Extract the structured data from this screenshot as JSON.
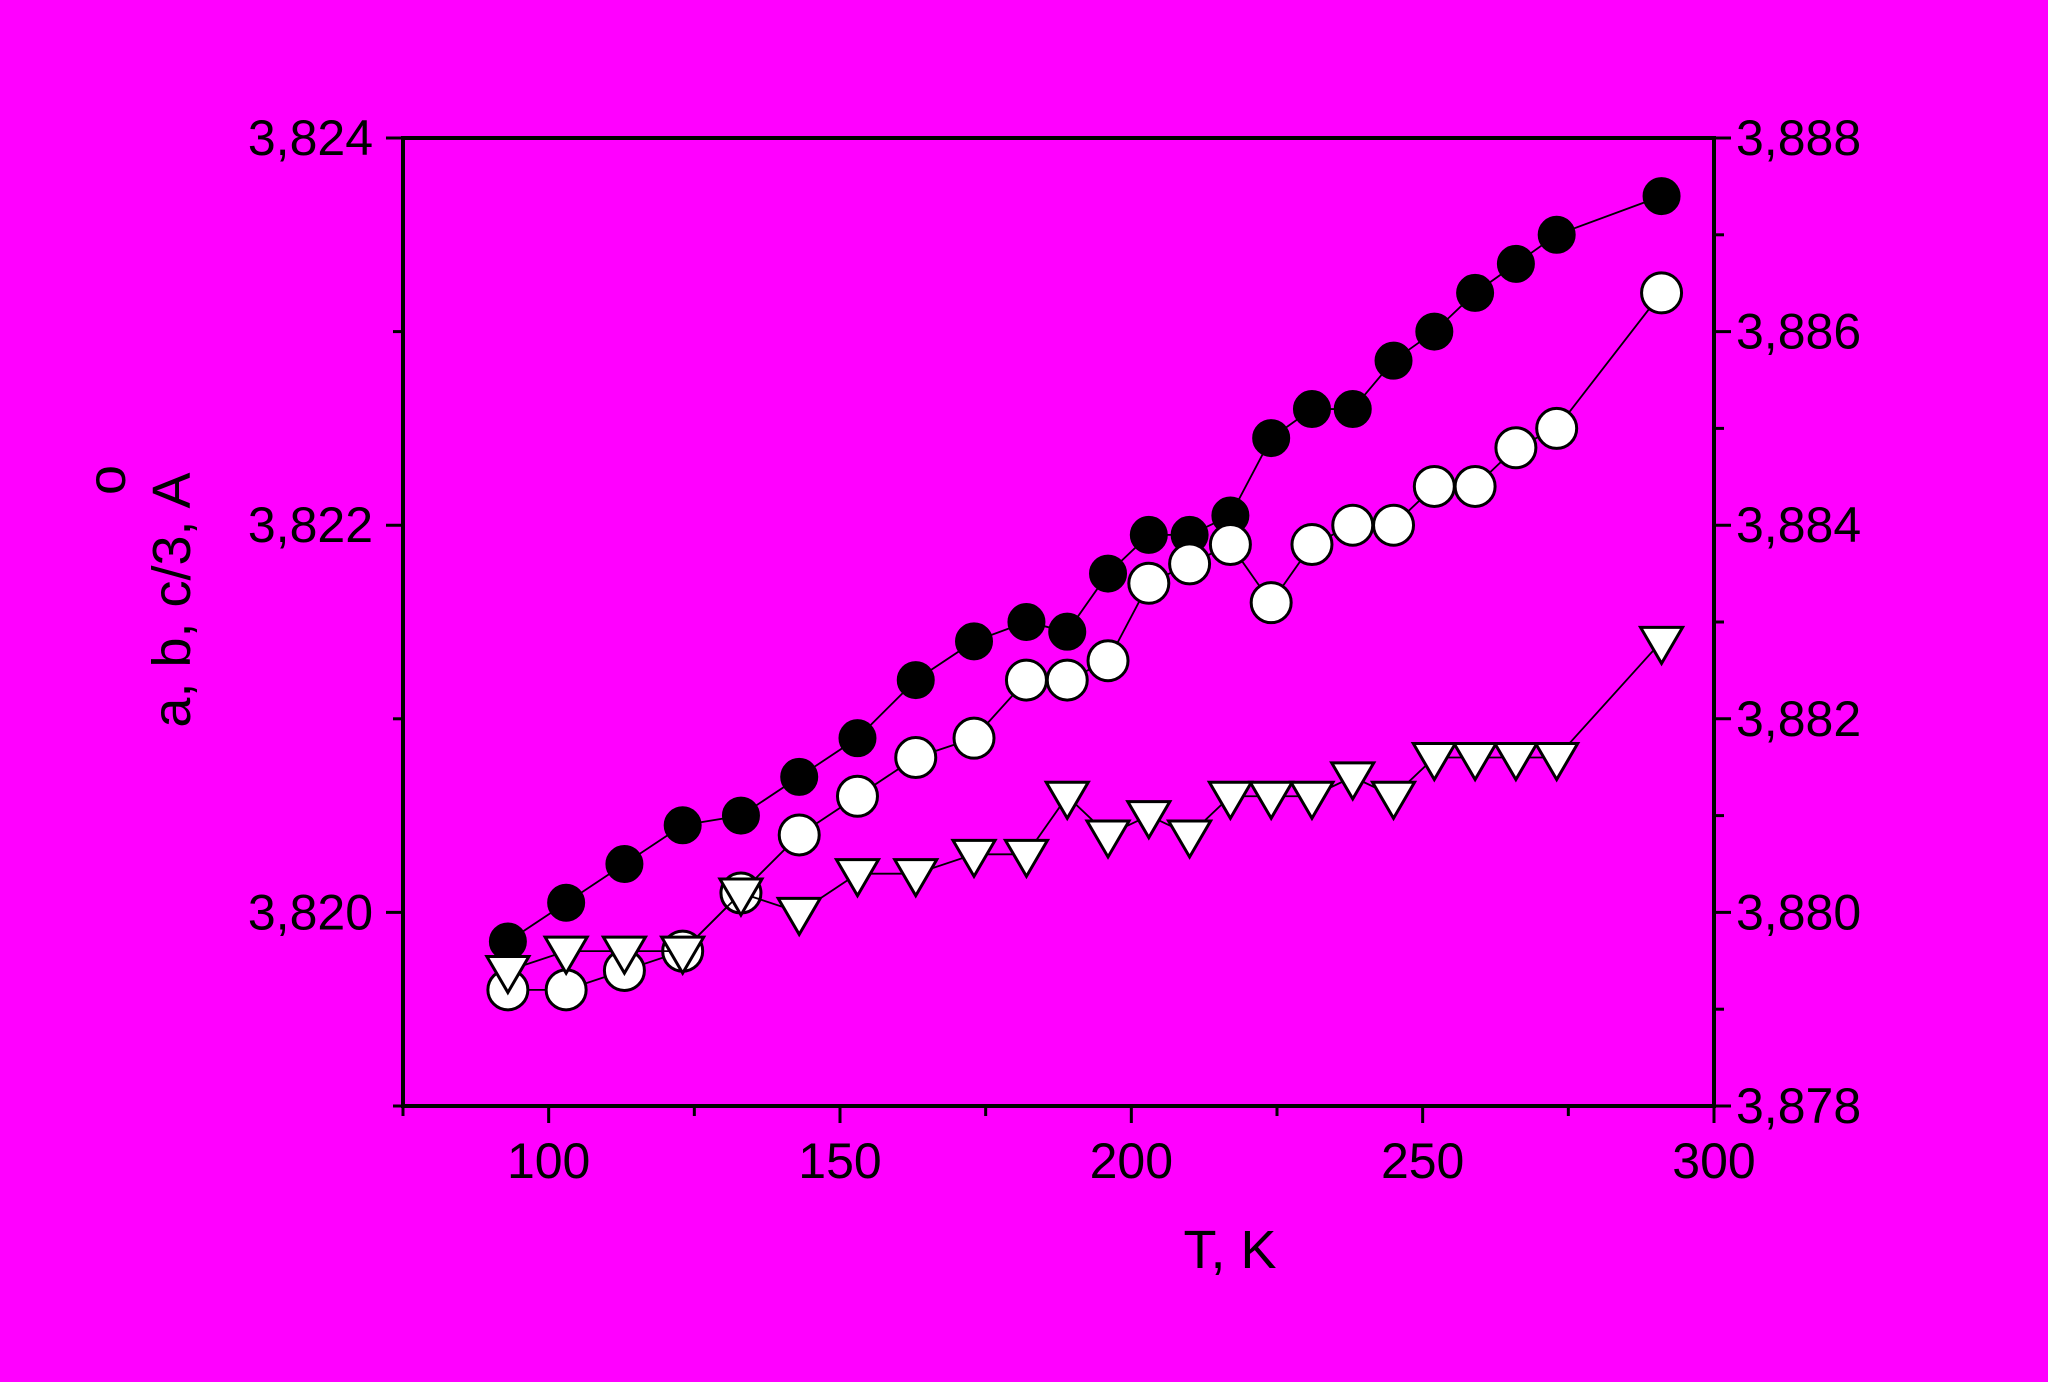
{
  "chart_data": {
    "type": "scatter",
    "xlabel": "T, K",
    "ylabel": "a, b, c/3,  A",
    "ylabel_accent": "o",
    "background": "#ff00ff",
    "xlim": [
      75,
      300
    ],
    "xticks": [
      100,
      150,
      200,
      250,
      300
    ],
    "xtick_labels": [
      "100",
      "150",
      "200",
      "250",
      "300"
    ],
    "ylim_left": [
      3.819,
      3.824
    ],
    "yticks_left": [
      3.82,
      3.822,
      3.824
    ],
    "ytick_labels_left": [
      "3,820",
      "3,822",
      "3,824"
    ],
    "ylim_right": [
      3.878,
      3.888
    ],
    "yticks_right": [
      3.878,
      3.88,
      3.882,
      3.884,
      3.886,
      3.888
    ],
    "ytick_labels_right": [
      "3,878",
      "3,880",
      "3,882",
      "3,884",
      "3,886",
      "3,888"
    ],
    "grid": false,
    "series": [
      {
        "marker": "filled-circle",
        "axis": "right",
        "color": "#000000",
        "x": [
          93,
          103,
          113,
          123,
          133,
          143,
          153,
          163,
          173,
          182,
          189,
          196,
          203,
          210,
          217,
          224,
          231,
          238,
          245,
          252,
          259,
          266,
          273,
          291
        ],
        "y": [
          3.8797,
          3.8801,
          3.8805,
          3.8809,
          3.881,
          3.8814,
          3.8818,
          3.8824,
          3.8828,
          3.883,
          3.8829,
          3.8835,
          3.8839,
          3.8839,
          3.8841,
          3.8849,
          3.8852,
          3.8852,
          3.8857,
          3.886,
          3.8864,
          3.8867,
          3.887,
          3.8874
        ]
      },
      {
        "marker": "open-circle",
        "axis": "left",
        "color": "#ffffff",
        "x": [
          93,
          103,
          113,
          123,
          133,
          143,
          153,
          163,
          173,
          182,
          189,
          196,
          203,
          210,
          217,
          224,
          231,
          238,
          245,
          252,
          259,
          266,
          273,
          291
        ],
        "y": [
          3.8196,
          3.8196,
          3.8197,
          3.8198,
          3.8201,
          3.8204,
          3.8206,
          3.8208,
          3.8209,
          3.8212,
          3.8212,
          3.8213,
          3.8217,
          3.8218,
          3.8219,
          3.8216,
          3.8219,
          3.822,
          3.822,
          3.8222,
          3.8222,
          3.8224,
          3.8225,
          3.8232
        ]
      },
      {
        "marker": "open-triangle-down",
        "axis": "left",
        "color": "#ffffff",
        "x": [
          93,
          103,
          113,
          123,
          133,
          143,
          153,
          163,
          173,
          182,
          189,
          196,
          203,
          210,
          217,
          224,
          231,
          238,
          245,
          252,
          259,
          266,
          273,
          291
        ],
        "y": [
          3.8197,
          3.8198,
          3.8198,
          3.8198,
          3.8201,
          3.82,
          3.8202,
          3.8202,
          3.8203,
          3.8203,
          3.8206,
          3.8204,
          3.8205,
          3.8204,
          3.8206,
          3.8206,
          3.8206,
          3.8207,
          3.8206,
          3.8208,
          3.8208,
          3.8208,
          3.8208,
          3.8214
        ]
      }
    ]
  }
}
